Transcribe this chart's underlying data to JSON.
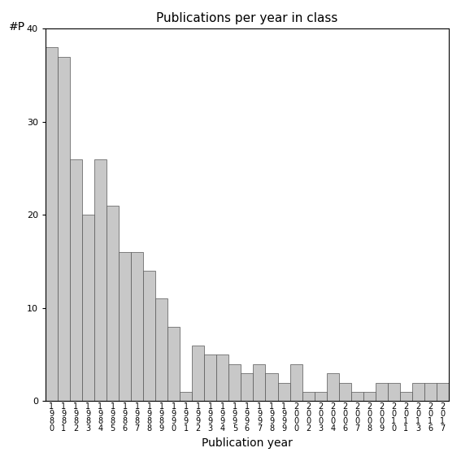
{
  "title": "Publications per year in class",
  "xlabel": "Publication year",
  "ylabel": "#P",
  "ylim": [
    0,
    40
  ],
  "yticks": [
    0,
    10,
    20,
    30,
    40
  ],
  "categories": [
    "1\n9\n8\n0",
    "1\n9\n8\n1",
    "1\n9\n8\n2",
    "1\n9\n8\n3",
    "1\n9\n8\n4",
    "1\n9\n8\n5",
    "1\n9\n8\n6",
    "1\n9\n8\n7",
    "1\n9\n8\n8",
    "1\n9\n8\n9",
    "1\n9\n9\n0",
    "1\n9\n9\n1",
    "1\n9\n9\n2",
    "1\n9\n9\n3",
    "1\n9\n9\n4",
    "1\n9\n9\n5",
    "1\n9\n9\n6",
    "1\n9\n9\n7",
    "1\n9\n9\n8",
    "1\n9\n9\n9",
    "2\n0\n0\n0",
    "2\n0\n0\n2",
    "2\n0\n0\n3",
    "2\n0\n0\n4",
    "2\n0\n0\n6",
    "2\n0\n0\n7",
    "2\n0\n0\n8",
    "2\n0\n0\n9",
    "2\n0\n1\n0",
    "2\n0\n1\n1",
    "2\n0\n1\n3",
    "2\n0\n1\n6",
    "2\n0\n1\n7"
  ],
  "values": [
    38,
    37,
    26,
    20,
    26,
    21,
    16,
    16,
    14,
    11,
    8,
    1,
    6,
    5,
    5,
    4,
    3,
    4,
    3,
    2,
    4,
    1,
    1,
    3,
    2,
    1,
    1,
    2,
    2,
    1,
    2,
    2,
    2
  ],
  "bar_color": "#c8c8c8",
  "bar_edgecolor": "#555555",
  "background_color": "#ffffff",
  "title_fontsize": 11,
  "axis_label_fontsize": 10,
  "tick_fontsize": 8,
  "ylabel_fontsize": 10
}
